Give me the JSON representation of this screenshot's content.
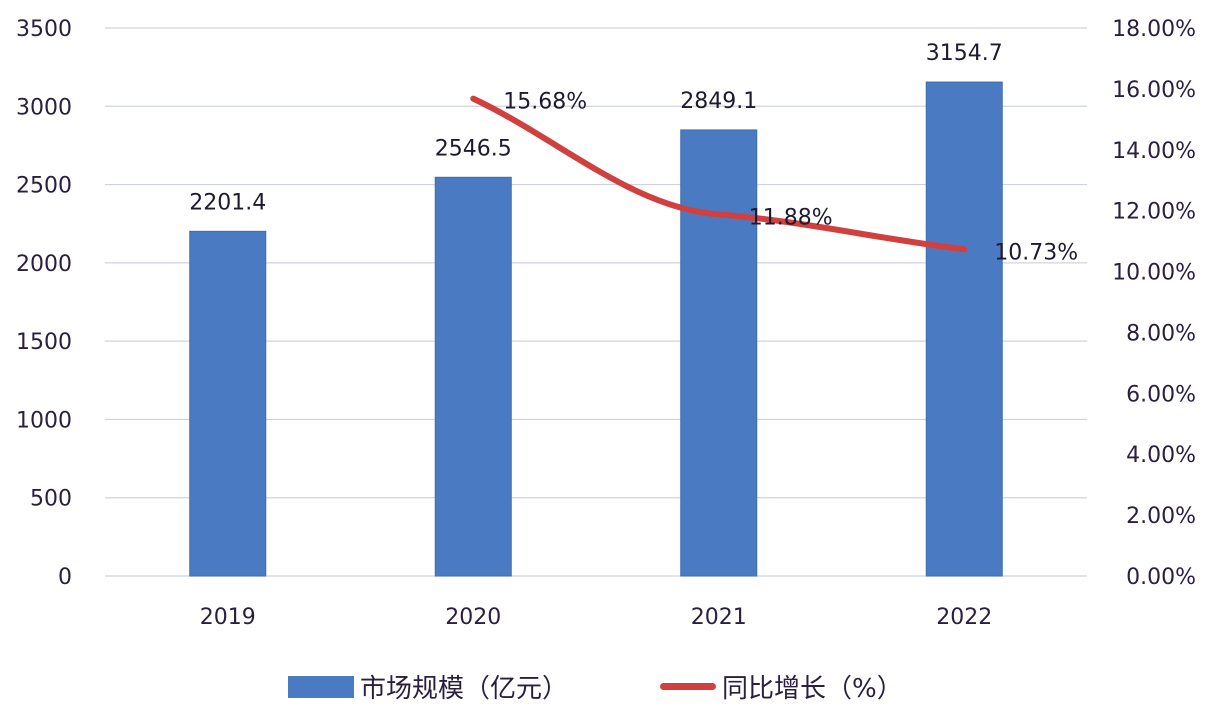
{
  "chart_data": {
    "type": "bar",
    "combo": "bar+line (dual axis)",
    "title": "",
    "categories": [
      "2019",
      "2020",
      "2021",
      "2022"
    ],
    "series": [
      {
        "name": "市场规模（亿元）",
        "type": "bar",
        "axis": "left",
        "color": "#4a7bc2",
        "values": [
          2201.4,
          2546.5,
          2849.1,
          3154.7
        ],
        "labels": [
          "2201.4",
          "2546.5",
          "2849.1",
          "3154.7"
        ]
      },
      {
        "name": "同比增长（%）",
        "type": "line",
        "axis": "right",
        "color": "#d0403f",
        "values": [
          null,
          15.68,
          11.88,
          10.73
        ],
        "labels": [
          "",
          "15.68%",
          "11.88%",
          "10.73%"
        ]
      }
    ],
    "y_left": {
      "range": [
        0,
        3500
      ],
      "ticks": [
        "0",
        "500",
        "1000",
        "1500",
        "2000",
        "2500",
        "3000",
        "3500"
      ]
    },
    "y_right": {
      "range": [
        0,
        18
      ],
      "ticks": [
        "0.00%",
        "2.00%",
        "4.00%",
        "6.00%",
        "8.00%",
        "10.00%",
        "12.00%",
        "14.00%",
        "16.00%",
        "18.00%"
      ]
    },
    "xlabel": "",
    "ylabel": "",
    "grid": true,
    "legend_position": "bottom"
  },
  "legend": {
    "bar_label": "市场规模（亿元）",
    "line_label": "同比增长（%）"
  }
}
